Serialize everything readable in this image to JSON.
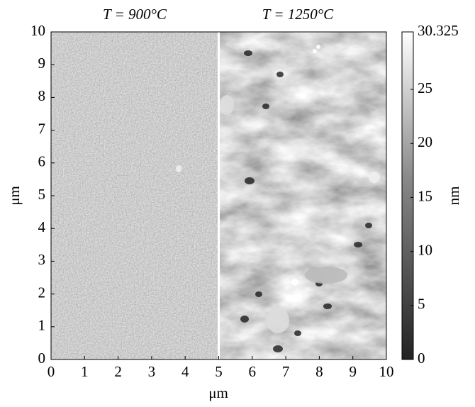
{
  "chart_data": {
    "type": "image",
    "panel_titles": [
      "T = 900°C",
      "T = 1250°C"
    ],
    "x_label": "μm",
    "y_label": "μm",
    "xlim": [
      0,
      10
    ],
    "xticks": [
      0,
      1,
      2,
      3,
      4,
      5,
      6,
      7,
      8,
      9,
      10
    ],
    "ylim": [
      0,
      10
    ],
    "yticks": [
      0,
      1,
      2,
      3,
      4,
      5,
      6,
      7,
      8,
      9,
      10
    ],
    "colorbar": {
      "label": "nm",
      "lim": [
        0,
        30.325
      ],
      "ticks": [
        0,
        5,
        10,
        15,
        20,
        25,
        30.325
      ]
    }
  }
}
